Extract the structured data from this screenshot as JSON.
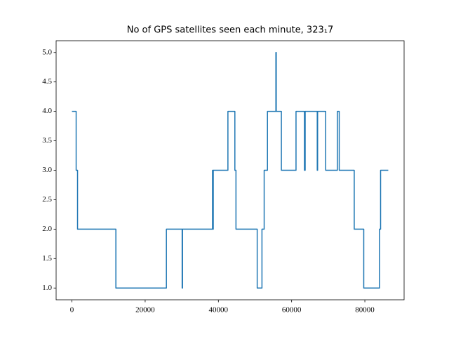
{
  "chart_data": {
    "type": "line",
    "title": "No of GPS satellites seen each minute, 323₁7",
    "x": [
      0,
      1150,
      1150,
      1530,
      1530,
      12000,
      12000,
      25800,
      25800,
      30100,
      30100,
      30200,
      30200,
      38400,
      38400,
      38500,
      38500,
      38600,
      38600,
      42600,
      42600,
      44500,
      44500,
      44800,
      44800,
      50600,
      50600,
      51900,
      51900,
      52500,
      52500,
      53400,
      53400,
      55700,
      55700,
      55800,
      55800,
      57200,
      57200,
      61200,
      61200,
      63500,
      63500,
      63700,
      63700,
      67000,
      67000,
      67100,
      67100,
      69300,
      69300,
      72500,
      72500,
      73000,
      73000,
      77100,
      77100,
      79700,
      79700,
      84000,
      84000,
      84300,
      84300,
      86400
    ],
    "values": [
      4,
      4,
      3,
      3,
      2,
      2,
      1,
      1,
      2,
      2,
      1,
      1,
      2,
      2,
      3,
      3,
      2,
      2,
      3,
      3,
      4,
      4,
      3,
      3,
      2,
      2,
      1,
      1,
      2,
      2,
      3,
      3,
      4,
      4,
      5,
      5,
      4,
      4,
      3,
      3,
      4,
      4,
      3,
      3,
      4,
      4,
      3,
      3,
      4,
      4,
      3,
      3,
      4,
      4,
      3,
      3,
      2,
      2,
      1,
      1,
      2,
      2,
      3,
      3
    ],
    "color": "#1f77b4",
    "xlim": [
      -4320,
      90720
    ],
    "ylim": [
      0.8,
      5.2
    ],
    "xticks": [
      0,
      20000,
      40000,
      60000,
      80000
    ],
    "yticks": [
      {
        "value": 1.0,
        "label": "1.0"
      },
      {
        "value": 1.5,
        "label": "1.5"
      },
      {
        "value": 2.0,
        "label": "2.0"
      },
      {
        "value": 2.5,
        "label": "2.5"
      },
      {
        "value": 3.0,
        "label": "3.0"
      },
      {
        "value": 3.5,
        "label": "3.5"
      },
      {
        "value": 4.0,
        "label": "4.0"
      },
      {
        "value": 4.5,
        "label": "4.5"
      },
      {
        "value": 5.0,
        "label": "5.0"
      }
    ]
  }
}
